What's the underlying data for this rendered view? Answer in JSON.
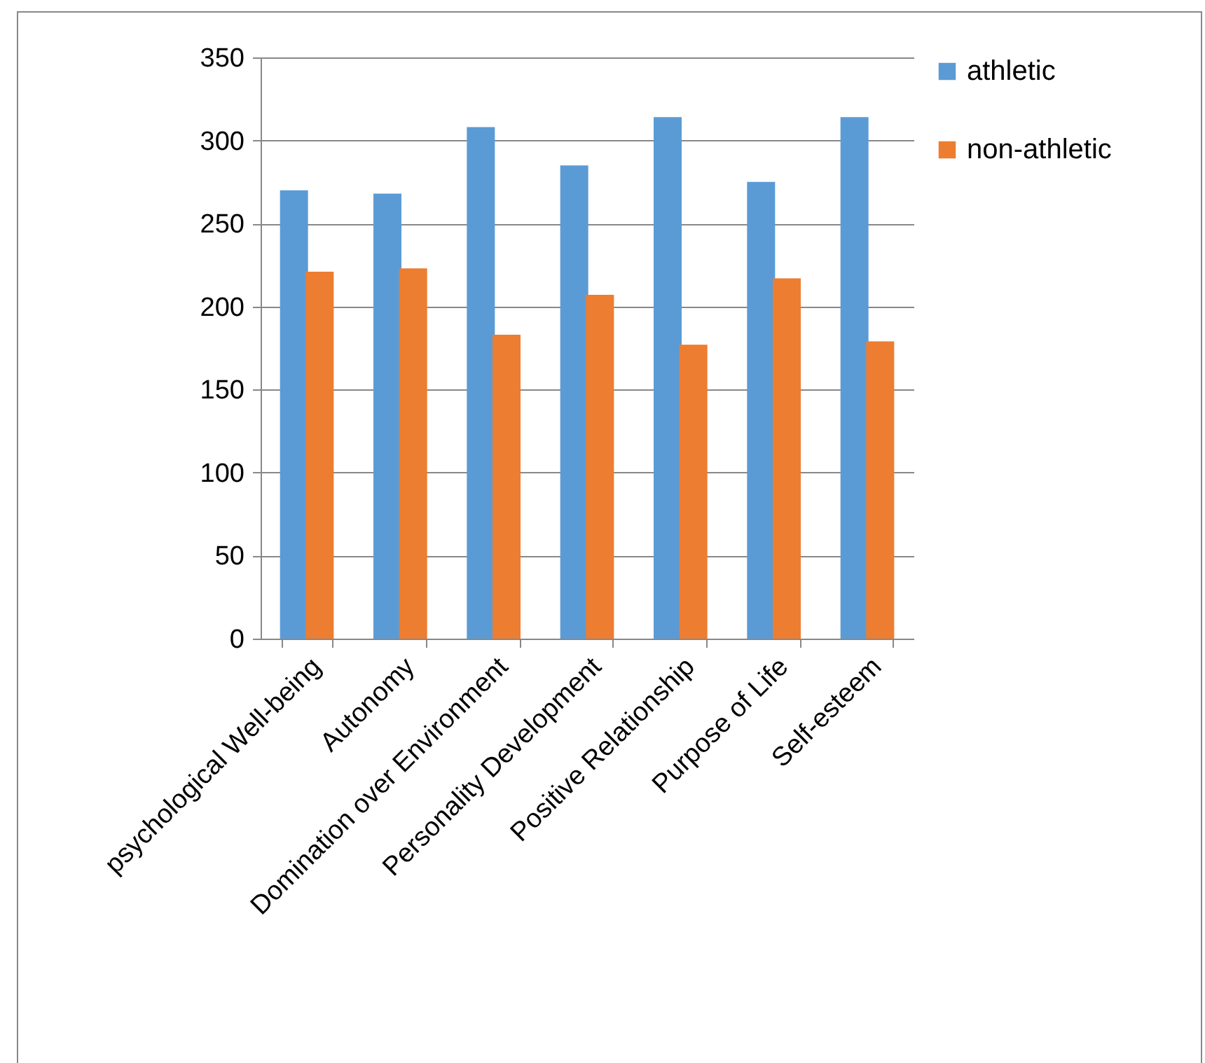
{
  "chart_data": {
    "type": "bar",
    "categories": [
      "psychological Well-being",
      "Autonomy",
      "Domination over Environment",
      "Personality Development",
      "Positive Relationship",
      "Purpose of Life",
      "Self-esteem"
    ],
    "series": [
      {
        "name": "athletic",
        "color": "#5b9bd5",
        "values": [
          270,
          268,
          308,
          285,
          314,
          275,
          314
        ]
      },
      {
        "name": "non-athletic",
        "color": "#ed7d31",
        "values": [
          221,
          223,
          183,
          207,
          177,
          217,
          179
        ]
      }
    ],
    "ylim": [
      0,
      350
    ],
    "yticks": [
      0,
      50,
      100,
      150,
      200,
      250,
      300,
      350
    ],
    "grid": "y",
    "legend": "right"
  }
}
